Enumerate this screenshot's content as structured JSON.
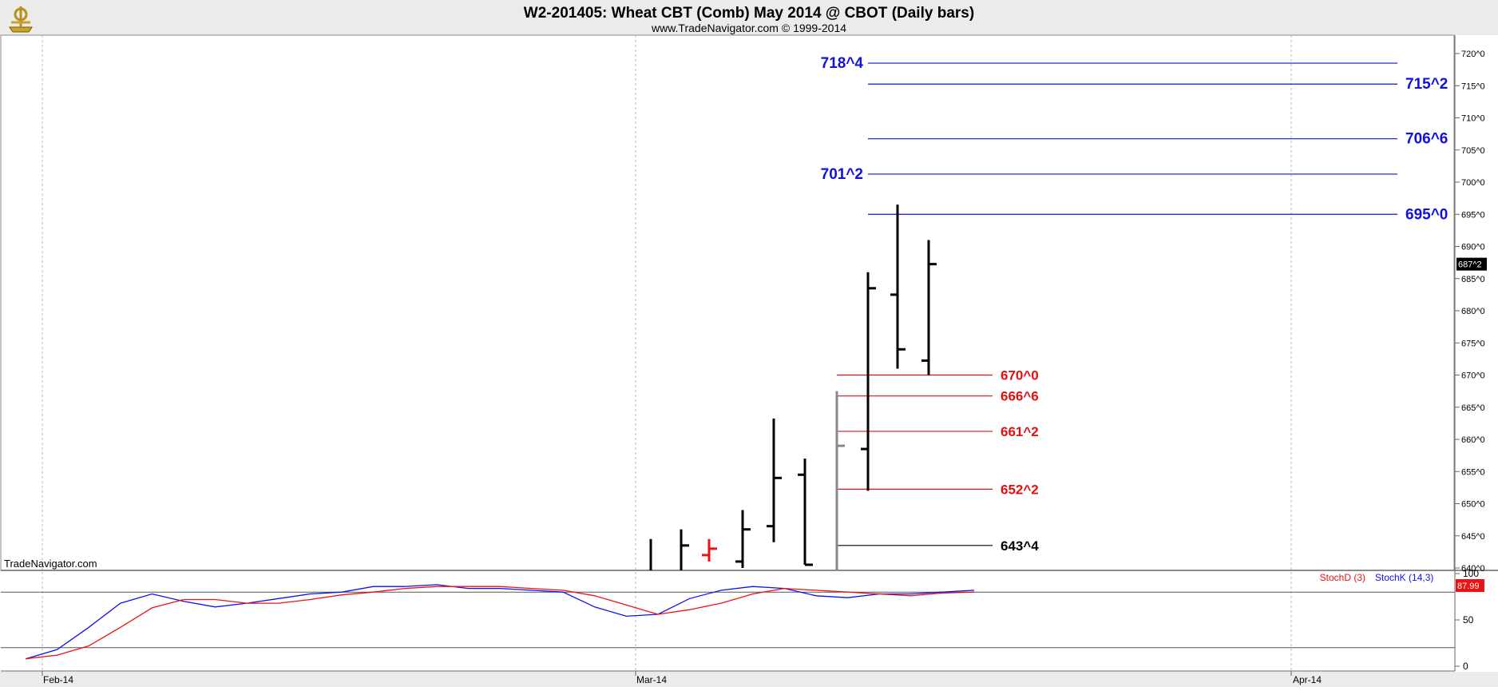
{
  "header": {
    "title": "W2-201405:  Wheat CBT (Comb) May 2014 @ CBOT  (Daily bars)",
    "subtitle": "www.TradeNavigator.com © 1999-2014",
    "watermark": "TradeNavigator.com"
  },
  "colors": {
    "background": "#ffffff",
    "header_bg": "#ebebeb",
    "bars": "#000000",
    "upper_levels": "#1010e0",
    "lower_levels": "#e01010",
    "support": "#000000",
    "stoch_d": "#ee1111",
    "stoch_k": "#1111ee"
  },
  "chart_data": [
    {
      "type": "ohlc",
      "title": "W2-201405:  Wheat CBT (Comb) May 2014 @ CBOT  (Daily bars)",
      "x_ticks": [
        "Feb-14",
        "Mar-14",
        "Apr-14"
      ],
      "y_range": [
        638,
        724
      ],
      "y_ticks": [
        "640^0",
        "645^0",
        "650^0",
        "655^0",
        "660^0",
        "665^0",
        "670^0",
        "675^0",
        "680^0",
        "685^0",
        "690^0",
        "695^0",
        "700^0",
        "705^0",
        "710^0",
        "715^0",
        "720^0"
      ],
      "y_tick_values": [
        640,
        645,
        650,
        655,
        660,
        665,
        670,
        675,
        680,
        685,
        690,
        695,
        700,
        705,
        710,
        715,
        720
      ],
      "last_price_label": "687^2",
      "last_price": 687.25,
      "bars": [
        {
          "day": "03-07",
          "high": 644.5,
          "low": 637,
          "open": null,
          "close": null,
          "color": "black"
        },
        {
          "day": "03-10",
          "high": 646,
          "low": 637,
          "open": null,
          "close": 643.5,
          "color": "black"
        },
        {
          "day": "03-11",
          "high": 644.5,
          "low": 641,
          "open": 642,
          "close": 643,
          "color": "red"
        },
        {
          "day": "03-12",
          "high": 649,
          "low": 640,
          "open": 641,
          "close": 646,
          "color": "black"
        },
        {
          "day": "03-13",
          "high": 663.25,
          "low": 644,
          "open": 646.5,
          "close": 654,
          "color": "black"
        },
        {
          "day": "03-14",
          "high": 657,
          "low": 640.5,
          "open": 654.5,
          "close": 640.5,
          "color": "black"
        },
        {
          "day": "03-17",
          "high": 667.5,
          "low": 637,
          "open": null,
          "close": 659,
          "color": "gray"
        },
        {
          "day": "03-18",
          "high": 686,
          "low": 652,
          "open": 658.5,
          "close": 683.5,
          "color": "black"
        },
        {
          "day": "03-19",
          "high": 696.5,
          "low": 671,
          "open": 682.5,
          "close": 674,
          "color": "black"
        },
        {
          "day": "03-20",
          "high": 691,
          "low": 670,
          "open": 672.25,
          "close": 687.25,
          "color": "black"
        }
      ],
      "levels": [
        {
          "label": "718^4",
          "value": 718.5,
          "group": "upper",
          "label_side": "left"
        },
        {
          "label": "715^2",
          "value": 715.25,
          "group": "upper",
          "label_side": "right"
        },
        {
          "label": "706^6",
          "value": 706.75,
          "group": "upper",
          "label_side": "right"
        },
        {
          "label": "701^2",
          "value": 701.25,
          "group": "upper",
          "label_side": "left"
        },
        {
          "label": "695^0",
          "value": 695,
          "group": "upper",
          "label_side": "right"
        },
        {
          "label": "670^0",
          "value": 670,
          "group": "lower",
          "label_side": "right"
        },
        {
          "label": "666^6",
          "value": 666.75,
          "group": "lower",
          "label_side": "right"
        },
        {
          "label": "661^2",
          "value": 661.25,
          "group": "lower",
          "label_side": "right"
        },
        {
          "label": "652^2",
          "value": 652.25,
          "group": "lower",
          "label_side": "right"
        },
        {
          "label": "643^4",
          "value": 643.5,
          "group": "support",
          "label_side": "right"
        }
      ]
    },
    {
      "type": "line",
      "title": "",
      "legend": [
        "StochD (3)",
        "StochK (14,3)"
      ],
      "y_range": [
        0,
        100
      ],
      "y_ticks": [
        "0",
        "50",
        "100"
      ],
      "y_tick_values": [
        0,
        50,
        100
      ],
      "reference_lines": [
        80,
        20
      ],
      "last_value_label": "87.99",
      "series": [
        {
          "name": "StochK (14,3)",
          "values": [
            8,
            18,
            42,
            68,
            78,
            70,
            64,
            68,
            73,
            78,
            80,
            86,
            86,
            88,
            84,
            84,
            82,
            80,
            64,
            54,
            56,
            73,
            82,
            86,
            84,
            76,
            74,
            78,
            78,
            80,
            82
          ]
        },
        {
          "name": "StochD (3)",
          "values": [
            8,
            12,
            22,
            42,
            63,
            72,
            72,
            68,
            68,
            72,
            77,
            80,
            84,
            86,
            86,
            86,
            84,
            82,
            76,
            66,
            56,
            61,
            68,
            78,
            84,
            82,
            80,
            78,
            76,
            79,
            80
          ]
        }
      ]
    }
  ]
}
